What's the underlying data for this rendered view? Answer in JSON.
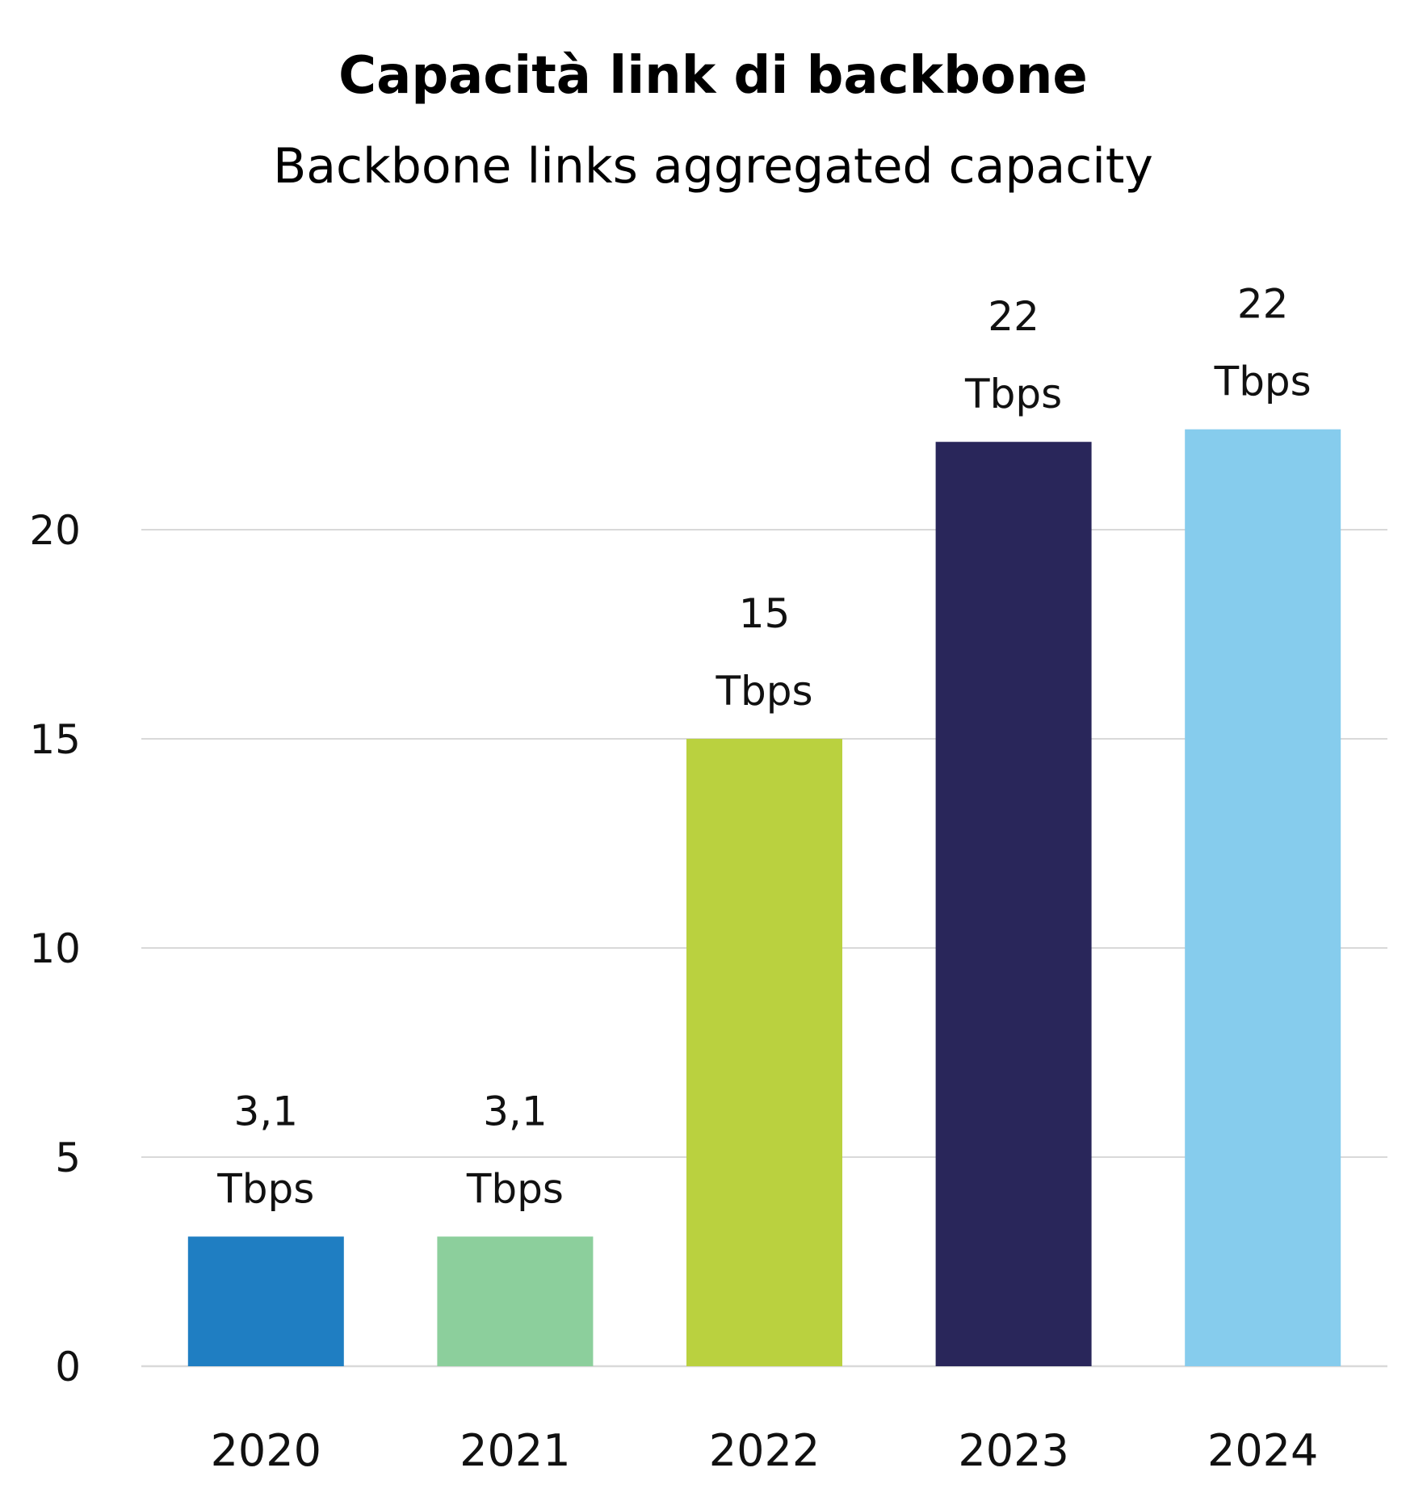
{
  "chart_data": {
    "type": "bar",
    "title": "Capacità link di backbone",
    "subtitle": "Backbone links aggregated capacity",
    "categories": [
      "2020",
      "2021",
      "2022",
      "2023",
      "2024"
    ],
    "values": [
      3.1,
      3.1,
      15,
      22.1,
      22.4
    ],
    "data_labels": [
      {
        "value": "3,1",
        "unit": "Tbps"
      },
      {
        "value": "3,1",
        "unit": "Tbps"
      },
      {
        "value": "15",
        "unit": "Tbps"
      },
      {
        "value": "22",
        "unit": "Tbps"
      },
      {
        "value": "22",
        "unit": "Tbps"
      }
    ],
    "colors": [
      "#1f7ec2",
      "#8ccf9c",
      "#bad13f",
      "#29265a",
      "#86cced"
    ],
    "y_ticks": [
      "0",
      "5",
      "10",
      "15",
      "20"
    ],
    "y_tick_values": [
      0,
      5,
      10,
      15,
      20
    ],
    "ylim": [
      0,
      25
    ],
    "grid": true,
    "gridline_color": "#d9d9d9",
    "legend": "none",
    "xlabel": "",
    "ylabel": ""
  }
}
